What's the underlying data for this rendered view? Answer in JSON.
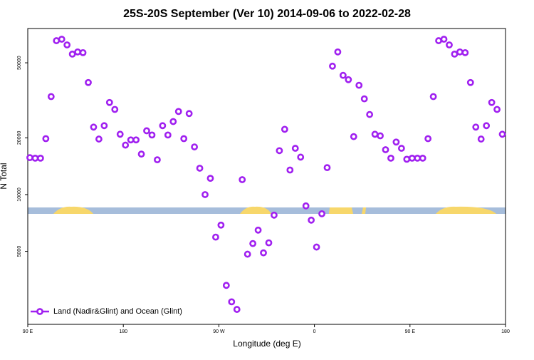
{
  "chart_data": {
    "type": "scatter",
    "title": "25S-20S September (Ver 10)   2014-09-06 to 2022-02-28",
    "x_label": "Longitude (deg E)",
    "y_label": "N Total",
    "ylog": true,
    "xlim": [
      90,
      540
    ],
    "ylim": [
      2050,
      76000
    ],
    "xticks": [
      {
        "value": 90,
        "label": "90 E"
      },
      {
        "value": 180,
        "label": "180"
      },
      {
        "value": 270,
        "label": "90 W"
      },
      {
        "value": 360,
        "label": "0"
      },
      {
        "value": 450,
        "label": "90 E"
      },
      {
        "value": 540,
        "label": "180"
      }
    ],
    "yticks": [
      5000,
      10000,
      20000,
      50000
    ],
    "legend": "bottom-left",
    "series": [
      {
        "name": "Land (Nadir&Glint) and Ocean (Glint)",
        "color": "#a020f0",
        "x": [
          92,
          97,
          102,
          107,
          112,
          117,
          122,
          127,
          132,
          137,
          142,
          147,
          152,
          157,
          162,
          167,
          172,
          177,
          182,
          187,
          192,
          197,
          202,
          207,
          212,
          217,
          222,
          227,
          232,
          237,
          242,
          247,
          252,
          257,
          262,
          267,
          272,
          277,
          282,
          287,
          292,
          297,
          302,
          307,
          312,
          317,
          322,
          327,
          332,
          337,
          342,
          347,
          352,
          357,
          362,
          367,
          372,
          377,
          382,
          387,
          392,
          397,
          402,
          407,
          412,
          417,
          422,
          427,
          432,
          437,
          442,
          447,
          452,
          457,
          462,
          467,
          472,
          477,
          482,
          487,
          492,
          497,
          502,
          507,
          512,
          517,
          522,
          527,
          532,
          537
        ],
        "values": [
          15700,
          15600,
          15600,
          19800,
          33100,
          65500,
          66700,
          62200,
          55600,
          57100,
          56600,
          39300,
          22800,
          19700,
          23200,
          30800,
          28300,
          20900,
          18300,
          19500,
          19500,
          16400,
          21800,
          20700,
          15300,
          23200,
          20700,
          24400,
          27600,
          19800,
          26900,
          17900,
          13800,
          10000,
          12200,
          5950,
          6890,
          3300,
          2700,
          2460,
          12000,
          4830,
          5500,
          6480,
          4910,
          5550,
          7780,
          17100,
          22200,
          13500,
          17600,
          15800,
          8710,
          7320,
          5270,
          7910,
          13900,
          48000,
          57100,
          42900,
          40700,
          20300,
          38000,
          32200,
          26600,
          20900,
          20500,
          17300,
          15600,
          19000,
          17600,
          15400,
          15600,
          15600,
          15600,
          19800,
          33100,
          65500,
          66700,
          62200,
          55600,
          57100,
          56600,
          39300,
          22800,
          19700,
          23200,
          30800,
          28300,
          20900
        ]
      }
    ]
  }
}
